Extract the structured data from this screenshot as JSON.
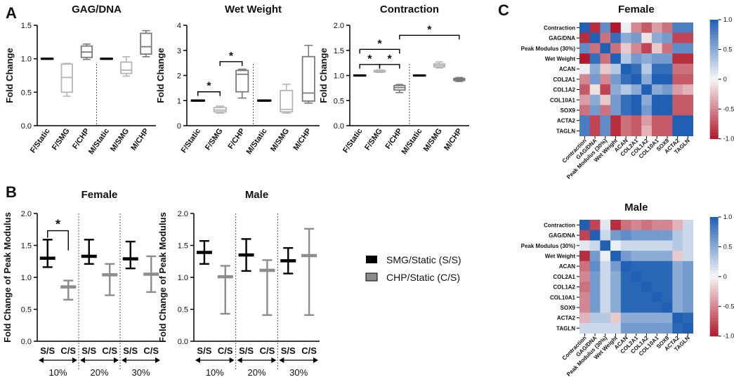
{
  "panel_letters": {
    "a": "A",
    "b": "B",
    "c": "C"
  },
  "colors": {
    "black": "#000000",
    "grey": "#8c8c8c",
    "lightgrey": "#b5b5b5",
    "pos": "#1f5fb4",
    "neg": "#b2182b"
  },
  "chart_data": [
    {
      "id": "gag",
      "type": "box",
      "title": "GAG/DNA",
      "ylabel": "Fold Change",
      "ylim": [
        0,
        1.5
      ],
      "yticks": [
        0.0,
        0.5,
        1.0,
        1.5
      ],
      "ytick_labels": [
        "0.0",
        "0.5",
        "1.0",
        "1.5"
      ],
      "categories": [
        "F/Static",
        "F/SMG",
        "F/CHP",
        "M/Static",
        "M/SMG",
        "M/CHP"
      ],
      "boxes": [
        {
          "min": 1.0,
          "q1": 1.0,
          "median": 1.0,
          "q3": 1.0,
          "max": 1.0,
          "color": "#000000"
        },
        {
          "min": 0.44,
          "q1": 0.5,
          "median": 0.72,
          "q3": 0.92,
          "max": 0.93,
          "color": "#b5b5b5"
        },
        {
          "min": 0.99,
          "q1": 1.02,
          "median": 1.1,
          "q3": 1.19,
          "max": 1.22,
          "color": "#7a7a7a"
        },
        {
          "min": 1.0,
          "q1": 1.0,
          "median": 1.0,
          "q3": 1.0,
          "max": 1.0,
          "color": "#000000"
        },
        {
          "min": 0.74,
          "q1": 0.78,
          "median": 0.83,
          "q3": 0.95,
          "max": 1.03,
          "color": "#b5b5b5"
        },
        {
          "min": 1.03,
          "q1": 1.07,
          "median": 1.18,
          "q3": 1.38,
          "max": 1.42,
          "color": "#7a7a7a"
        }
      ],
      "significance": []
    },
    {
      "id": "ww",
      "type": "box",
      "title": "Wet Weight",
      "ylabel": "Fold Change",
      "ylim": [
        0,
        4
      ],
      "yticks": [
        0,
        1,
        2,
        3,
        4
      ],
      "ytick_labels": [
        "0",
        "1",
        "2",
        "3",
        "4"
      ],
      "categories": [
        "F/Static",
        "F/SMG",
        "F/CHP",
        "M/Static",
        "M/SMG",
        "M/CHP"
      ],
      "boxes": [
        {
          "min": 1.0,
          "q1": 1.0,
          "median": 1.0,
          "q3": 1.0,
          "max": 1.0,
          "color": "#000000"
        },
        {
          "min": 0.5,
          "q1": 0.55,
          "median": 0.62,
          "q3": 0.72,
          "max": 0.78,
          "color": "#b5b5b5"
        },
        {
          "min": 1.1,
          "q1": 1.35,
          "median": 2.05,
          "q3": 2.2,
          "max": 2.25,
          "color": "#7a7a7a"
        },
        {
          "min": 1.0,
          "q1": 1.0,
          "median": 1.0,
          "q3": 1.0,
          "max": 1.0,
          "color": "#000000"
        },
        {
          "min": 0.5,
          "q1": 0.55,
          "median": 0.65,
          "q3": 1.4,
          "max": 1.65,
          "color": "#b5b5b5"
        },
        {
          "min": 0.9,
          "q1": 0.98,
          "median": 1.3,
          "q3": 2.75,
          "max": 3.2,
          "color": "#7a7a7a"
        }
      ],
      "significance": [
        {
          "from": 0,
          "to": 1,
          "y": 1.35,
          "label": "*"
        },
        {
          "from": 1,
          "to": 2,
          "y": 2.55,
          "label": "*"
        }
      ]
    },
    {
      "id": "con",
      "type": "box",
      "title": "Contraction",
      "ylabel": "Fold Change",
      "ylim": [
        0,
        2.0
      ],
      "yticks": [
        0.0,
        0.5,
        1.0,
        1.5,
        2.0
      ],
      "ytick_labels": [
        "0.0",
        "0.5",
        "1.0",
        "1.5",
        "2.0"
      ],
      "categories": [
        "F/Static",
        "F/SMG",
        "F/CHP",
        "M/Static",
        "M/SMG",
        "M/CHP"
      ],
      "boxes": [
        {
          "min": 1.0,
          "q1": 1.0,
          "median": 1.0,
          "q3": 1.0,
          "max": 1.0,
          "color": "#000000"
        },
        {
          "min": 1.06,
          "q1": 1.07,
          "median": 1.08,
          "q3": 1.1,
          "max": 1.11,
          "color": "#b5b5b5"
        },
        {
          "min": 0.66,
          "q1": 0.71,
          "median": 0.76,
          "q3": 0.8,
          "max": 0.82,
          "color": "#7a7a7a"
        },
        {
          "min": 1.0,
          "q1": 1.0,
          "median": 1.0,
          "q3": 1.0,
          "max": 1.0,
          "color": "#000000"
        },
        {
          "min": 1.15,
          "q1": 1.17,
          "median": 1.2,
          "q3": 1.23,
          "max": 1.27,
          "color": "#b5b5b5"
        },
        {
          "min": 0.88,
          "q1": 0.9,
          "median": 0.92,
          "q3": 0.94,
          "max": 0.96,
          "color": "#7a7a7a"
        }
      ],
      "significance": [
        {
          "from": 0,
          "to": 1,
          "y": 1.22,
          "label": "*"
        },
        {
          "from": 1,
          "to": 2,
          "y": 1.22,
          "label": "*"
        },
        {
          "from": 0,
          "to": 2,
          "y": 1.52,
          "label": "*"
        },
        {
          "from": 2,
          "to": 5,
          "y": 1.8,
          "label": "*"
        }
      ]
    },
    {
      "id": "bf",
      "type": "errorbar",
      "title": "Female",
      "ylabel": "Fold Change of Peak Modulus",
      "ylim": [
        0,
        2.0
      ],
      "yticks": [
        0.0,
        0.5,
        1.0,
        1.5,
        2.0
      ],
      "ytick_labels": [
        "0.0",
        "0.5",
        "1.0",
        "1.5",
        "2.0"
      ],
      "categories": [
        "S/S",
        "C/S",
        "S/S",
        "C/S",
        "S/S",
        "C/S"
      ],
      "groups": [
        "10%",
        "20%",
        "30%"
      ],
      "points": [
        {
          "mean": 1.3,
          "low": 1.16,
          "high": 1.59,
          "color": "#000000"
        },
        {
          "mean": 0.85,
          "low": 0.65,
          "high": 0.95,
          "color": "#8c8c8c"
        },
        {
          "mean": 1.33,
          "low": 1.21,
          "high": 1.59,
          "color": "#000000"
        },
        {
          "mean": 1.04,
          "low": 0.72,
          "high": 1.21,
          "color": "#8c8c8c"
        },
        {
          "mean": 1.29,
          "low": 1.14,
          "high": 1.56,
          "color": "#000000"
        },
        {
          "mean": 1.05,
          "low": 0.77,
          "high": 1.33,
          "color": "#8c8c8c"
        }
      ],
      "significance": [
        {
          "from": 0,
          "to": 1,
          "y": 1.73,
          "label": "*"
        }
      ]
    },
    {
      "id": "bm",
      "type": "errorbar",
      "title": "Male",
      "ylabel": "Fold Change of Peak Modulus",
      "ylim": [
        0,
        2.0
      ],
      "yticks": [
        0.0,
        0.5,
        1.0,
        1.5,
        2.0
      ],
      "ytick_labels": [
        "0.0",
        "0.5",
        "1.0",
        "1.5",
        "2.0"
      ],
      "categories": [
        "S/S",
        "C/S",
        "S/S",
        "C/S",
        "S/S",
        "C/S"
      ],
      "groups": [
        "10%",
        "20%",
        "30%"
      ],
      "points": [
        {
          "mean": 1.39,
          "low": 1.21,
          "high": 1.57,
          "color": "#000000"
        },
        {
          "mean": 1.01,
          "low": 0.43,
          "high": 1.18,
          "color": "#8c8c8c"
        },
        {
          "mean": 1.35,
          "low": 1.1,
          "high": 1.6,
          "color": "#000000"
        },
        {
          "mean": 1.11,
          "low": 0.41,
          "high": 1.27,
          "color": "#8c8c8c"
        },
        {
          "mean": 1.26,
          "low": 1.06,
          "high": 1.46,
          "color": "#000000"
        },
        {
          "mean": 1.34,
          "low": 0.41,
          "high": 1.76,
          "color": "#8c8c8c"
        }
      ],
      "significance": []
    },
    {
      "id": "hf",
      "type": "heatmap",
      "title": "Female",
      "labels": [
        "Contraction",
        "GAG/DNA",
        "Peak Modulus (30%)",
        "Wet Weight",
        "ACAN",
        "COL2A1",
        "COL1A2",
        "COL10A1",
        "SOX9",
        "ACTA2",
        "TAGLN"
      ],
      "colorbar_ticks": [
        1.0,
        0.5,
        0,
        -0.5,
        -1.0
      ],
      "colorbar_labels": [
        "1.0",
        "0.5",
        "0",
        "-0.5",
        "-1.0"
      ],
      "matrix": [
        [
          1.0,
          -0.9,
          0.7,
          -1.0,
          0.05,
          -0.5,
          -0.7,
          -0.4,
          -0.6,
          0.8,
          0.8
        ],
        [
          -0.9,
          1.0,
          -0.6,
          0.9,
          0.5,
          0.6,
          -0.1,
          0.5,
          0.6,
          -0.8,
          -0.8
        ],
        [
          0.7,
          -0.6,
          1.0,
          -0.6,
          -0.2,
          -0.5,
          -0.8,
          -0.2,
          -0.6,
          0.7,
          0.7
        ],
        [
          -1.0,
          0.9,
          -0.6,
          1.0,
          0.3,
          0.6,
          0.5,
          0.6,
          0.6,
          -0.9,
          -0.9
        ],
        [
          0.05,
          0.5,
          -0.2,
          0.3,
          1.0,
          0.9,
          0.3,
          0.9,
          0.9,
          -0.6,
          -0.6
        ],
        [
          -0.5,
          0.6,
          -0.5,
          0.6,
          0.9,
          1.0,
          0.5,
          1.0,
          1.0,
          -0.7,
          -0.7
        ],
        [
          -0.7,
          -0.1,
          -0.8,
          0.5,
          0.3,
          0.5,
          1.0,
          0.5,
          0.6,
          -0.4,
          -0.3
        ],
        [
          -0.4,
          0.5,
          -0.2,
          0.6,
          0.9,
          1.0,
          0.5,
          1.0,
          1.0,
          -0.7,
          -0.7
        ],
        [
          -0.6,
          0.6,
          -0.6,
          0.6,
          0.9,
          1.0,
          0.6,
          1.0,
          1.0,
          -0.7,
          -0.7
        ],
        [
          0.8,
          -0.8,
          0.7,
          -0.9,
          -0.6,
          -0.7,
          -0.4,
          -0.7,
          -0.7,
          1.0,
          1.0
        ],
        [
          0.8,
          -0.8,
          0.7,
          -0.9,
          -0.6,
          -0.7,
          -0.3,
          -0.7,
          -0.7,
          1.0,
          1.0
        ]
      ]
    },
    {
      "id": "hm",
      "type": "heatmap",
      "title": "Male",
      "labels": [
        "Contraction",
        "GAG/DNA",
        "Peak Modulus (30%)",
        "Wet Weight",
        "ACAN",
        "COL2A1",
        "COL1A2",
        "COL10A1",
        "SOX9",
        "ACTA2",
        "TAGLN"
      ],
      "colorbar_ticks": [
        1.0,
        0.5,
        0,
        -0.5,
        -1.0
      ],
      "colorbar_labels": [
        "1.0",
        "0.5",
        "0",
        "-0.5",
        "-1.0"
      ],
      "matrix": [
        [
          1.0,
          -0.8,
          0.1,
          -0.9,
          -0.6,
          -0.5,
          -0.6,
          -0.5,
          -0.5,
          -0.3,
          0.2
        ],
        [
          -0.8,
          1.0,
          0.2,
          0.6,
          0.7,
          0.6,
          0.6,
          0.6,
          0.6,
          0.3,
          0.2
        ],
        [
          0.1,
          0.2,
          1.0,
          0.05,
          0.2,
          0.2,
          0.2,
          0.2,
          0.2,
          0.3,
          0.2
        ],
        [
          -0.9,
          0.6,
          0.05,
          1.0,
          0.6,
          0.5,
          0.5,
          0.5,
          0.5,
          -0.2,
          0.2
        ],
        [
          -0.6,
          0.7,
          0.2,
          0.6,
          1.0,
          0.95,
          0.95,
          0.95,
          0.95,
          0.5,
          0.6
        ],
        [
          -0.5,
          0.6,
          0.2,
          0.5,
          0.95,
          1.0,
          0.95,
          0.95,
          0.95,
          0.5,
          0.6
        ],
        [
          -0.6,
          0.6,
          0.2,
          0.5,
          0.95,
          0.95,
          1.0,
          0.95,
          0.95,
          0.5,
          0.6
        ],
        [
          -0.5,
          0.6,
          0.2,
          0.5,
          0.95,
          0.95,
          0.95,
          1.0,
          0.95,
          0.5,
          0.6
        ],
        [
          -0.5,
          0.6,
          0.2,
          0.5,
          0.95,
          0.95,
          0.95,
          0.95,
          1.0,
          0.5,
          0.6
        ],
        [
          -0.3,
          0.3,
          0.3,
          -0.2,
          0.5,
          0.5,
          0.5,
          0.5,
          0.5,
          1.0,
          0.95
        ],
        [
          0.2,
          0.2,
          0.2,
          0.2,
          0.6,
          0.6,
          0.6,
          0.6,
          0.6,
          0.95,
          1.0
        ]
      ]
    }
  ],
  "legend": [
    {
      "label": "SMG/Static (S/S)",
      "color": "#000000"
    },
    {
      "label": "CHP/Static (C/S)",
      "color": "#8c8c8c"
    }
  ]
}
